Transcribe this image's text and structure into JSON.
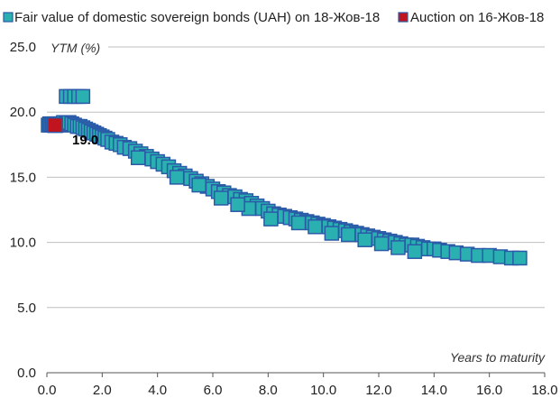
{
  "chart_data": {
    "type": "scatter",
    "xlabel": "Years to maturity",
    "ylabel": "YTM (%)",
    "xlim": [
      0,
      18
    ],
    "ylim": [
      0,
      25
    ],
    "x_ticks": [
      "0.0",
      "2.0",
      "4.0",
      "6.0",
      "8.0",
      "10.0",
      "12.0",
      "14.0",
      "16.0",
      "18.0"
    ],
    "y_ticks": [
      "0.0",
      "5.0",
      "10.0",
      "15.0",
      "20.0",
      "25.0"
    ],
    "grid": "horizontal",
    "legend_position": "top",
    "annotation": "19.0",
    "series": [
      {
        "name": "Fair value of domestic sovereign bonds (UAH) on 18-Жов-18",
        "color": "#2ab0b0",
        "border": "#2a5aa8",
        "marker": "square",
        "points": [
          [
            0.05,
            19.0
          ],
          [
            0.1,
            19.1
          ],
          [
            0.15,
            19.0
          ],
          [
            0.2,
            19.1
          ],
          [
            0.25,
            19.0
          ],
          [
            0.3,
            19.1
          ],
          [
            0.35,
            19.0
          ],
          [
            0.45,
            19.1
          ],
          [
            0.5,
            19.0
          ],
          [
            0.55,
            19.1
          ],
          [
            0.6,
            19.2
          ],
          [
            0.7,
            19.1
          ],
          [
            0.8,
            19.2
          ],
          [
            0.9,
            19.1
          ],
          [
            1.0,
            19.0
          ],
          [
            1.1,
            18.9
          ],
          [
            1.2,
            18.9
          ],
          [
            1.3,
            18.8
          ],
          [
            1.4,
            18.7
          ],
          [
            1.5,
            18.6
          ],
          [
            1.6,
            18.5
          ],
          [
            1.7,
            18.4
          ],
          [
            1.8,
            18.3
          ],
          [
            1.9,
            18.2
          ],
          [
            2.0,
            18.1
          ],
          [
            2.1,
            18.0
          ],
          [
            2.2,
            17.9
          ],
          [
            2.35,
            17.7
          ],
          [
            2.5,
            17.6
          ],
          [
            2.65,
            17.5
          ],
          [
            2.8,
            17.3
          ],
          [
            3.0,
            17.2
          ],
          [
            3.2,
            17.0
          ],
          [
            3.4,
            16.8
          ],
          [
            3.6,
            16.6
          ],
          [
            3.8,
            16.4
          ],
          [
            4.0,
            16.2
          ],
          [
            4.2,
            16.0
          ],
          [
            4.4,
            15.8
          ],
          [
            4.6,
            15.5
          ],
          [
            4.8,
            15.3
          ],
          [
            5.0,
            15.1
          ],
          [
            5.2,
            14.9
          ],
          [
            5.4,
            14.7
          ],
          [
            5.6,
            14.5
          ],
          [
            5.8,
            14.3
          ],
          [
            6.0,
            14.1
          ],
          [
            6.2,
            13.9
          ],
          [
            6.4,
            13.8
          ],
          [
            6.6,
            13.6
          ],
          [
            6.8,
            13.5
          ],
          [
            7.0,
            13.3
          ],
          [
            7.2,
            13.2
          ],
          [
            7.4,
            13.0
          ],
          [
            7.6,
            12.8
          ],
          [
            7.8,
            12.6
          ],
          [
            8.0,
            12.4
          ],
          [
            8.2,
            12.2
          ],
          [
            8.4,
            12.1
          ],
          [
            8.6,
            12.0
          ],
          [
            8.8,
            11.9
          ],
          [
            9.0,
            11.8
          ],
          [
            9.2,
            11.7
          ],
          [
            9.4,
            11.6
          ],
          [
            9.6,
            11.5
          ],
          [
            9.8,
            11.4
          ],
          [
            10.0,
            11.3
          ],
          [
            10.2,
            11.2
          ],
          [
            10.4,
            11.1
          ],
          [
            10.6,
            11.0
          ],
          [
            10.8,
            10.9
          ],
          [
            11.0,
            10.8
          ],
          [
            11.2,
            10.7
          ],
          [
            11.4,
            10.6
          ],
          [
            11.6,
            10.5
          ],
          [
            11.8,
            10.4
          ],
          [
            12.0,
            10.3
          ],
          [
            12.2,
            10.2
          ],
          [
            12.4,
            10.1
          ],
          [
            12.6,
            10.0
          ],
          [
            12.8,
            9.9
          ],
          [
            13.0,
            9.8
          ],
          [
            13.2,
            9.8
          ],
          [
            13.4,
            9.7
          ],
          [
            13.6,
            9.6
          ],
          [
            13.8,
            9.5
          ],
          [
            14.0,
            9.5
          ],
          [
            14.2,
            9.4
          ],
          [
            14.5,
            9.3
          ],
          [
            14.8,
            9.2
          ],
          [
            15.2,
            9.1
          ],
          [
            15.6,
            9.0
          ],
          [
            16.0,
            9.0
          ],
          [
            16.4,
            8.9
          ],
          [
            16.8,
            8.8
          ],
          [
            17.1,
            8.8
          ],
          [
            9.7,
            11.2
          ],
          [
            10.3,
            10.7
          ],
          [
            10.9,
            10.6
          ],
          [
            11.5,
            10.2
          ],
          [
            12.1,
            9.9
          ],
          [
            12.7,
            9.6
          ],
          [
            13.3,
            9.3
          ],
          [
            7.3,
            12.6
          ],
          [
            6.9,
            12.9
          ],
          [
            8.1,
            11.8
          ],
          [
            9.1,
            11.5
          ],
          [
            5.5,
            14.4
          ],
          [
            4.7,
            15.0
          ],
          [
            3.3,
            16.5
          ],
          [
            6.3,
            13.4
          ]
        ]
      },
      {
        "name": "Auction on 16-Жов-18",
        "color": "#c0141e",
        "border": "#2a5aa8",
        "marker": "square",
        "points": [
          [
            0.3,
            19.0
          ]
        ]
      }
    ],
    "outliers": [
      [
        0.7,
        21.2
      ],
      [
        0.85,
        21.2
      ],
      [
        1.0,
        21.2
      ],
      [
        1.15,
        21.2
      ],
      [
        1.3,
        21.2
      ]
    ]
  }
}
